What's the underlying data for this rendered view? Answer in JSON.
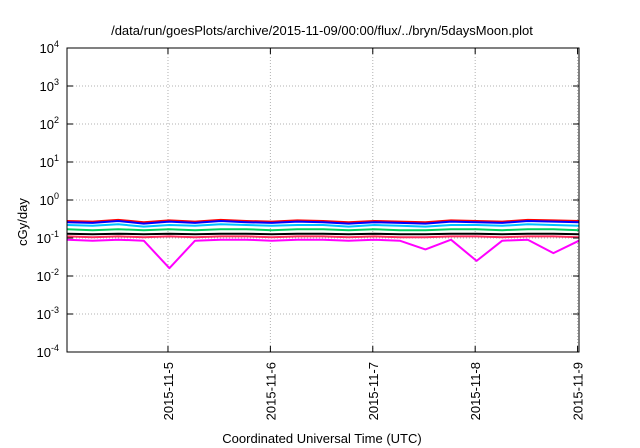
{
  "chart_data": {
    "type": "line",
    "title": "/data/run/goesPlots/archive/2015-11-09/00:00/flux/../bryn/5daysMoon.plot",
    "xlabel": "Coordinated Universal Time (UTC)",
    "ylabel": "cGy/day",
    "yscale": "log",
    "ylim": [
      0.0001,
      10000
    ],
    "xlim": [
      "2015-11-04T00:20",
      "2015-11-09T00:20"
    ],
    "grid": true,
    "x_ticks": [
      {
        "label": "2015-11-5",
        "date": "2015-11-05T00:00"
      },
      {
        "label": "2015-11-6",
        "date": "2015-11-06T00:00"
      },
      {
        "label": "2015-11-7",
        "date": "2015-11-07T00:00"
      },
      {
        "label": "2015-11-8",
        "date": "2015-11-08T00:00"
      },
      {
        "label": "2015-11-9",
        "date": "2015-11-09T00:00"
      }
    ],
    "y_ticks": [
      {
        "base": "10",
        "exp": "4",
        "value": 10000
      },
      {
        "base": "10",
        "exp": "3",
        "value": 1000
      },
      {
        "base": "10",
        "exp": "2",
        "value": 100
      },
      {
        "base": "10",
        "exp": "1",
        "value": 10
      },
      {
        "base": "10",
        "exp": "0",
        "value": 1
      },
      {
        "base": "10",
        "exp": "-1",
        "value": 0.1
      },
      {
        "base": "10",
        "exp": "-2",
        "value": 0.01
      },
      {
        "base": "10",
        "exp": "-3",
        "value": 0.001
      },
      {
        "base": "10",
        "exp": "-4",
        "value": 0.0001
      }
    ],
    "x": [
      "2015-11-04T00:20",
      "2015-11-04T06:20",
      "2015-11-04T12:20",
      "2015-11-04T18:20",
      "2015-11-05T00:20",
      "2015-11-05T06:20",
      "2015-11-05T12:20",
      "2015-11-05T18:20",
      "2015-11-06T00:20",
      "2015-11-06T06:20",
      "2015-11-06T12:20",
      "2015-11-06T18:20",
      "2015-11-07T00:20",
      "2015-11-07T06:20",
      "2015-11-07T12:20",
      "2015-11-07T18:20",
      "2015-11-08T00:20",
      "2015-11-08T06:20",
      "2015-11-08T12:20",
      "2015-11-08T18:20",
      "2015-11-09T00:20"
    ],
    "series": [
      {
        "color": "#ff0000",
        "values": [
          0.28,
          0.27,
          0.3,
          0.26,
          0.29,
          0.27,
          0.3,
          0.28,
          0.27,
          0.29,
          0.28,
          0.26,
          0.28,
          0.27,
          0.26,
          0.29,
          0.28,
          0.27,
          0.3,
          0.29,
          0.28
        ]
      },
      {
        "color": "#0000ff",
        "values": [
          0.26,
          0.25,
          0.28,
          0.24,
          0.27,
          0.25,
          0.28,
          0.26,
          0.25,
          0.27,
          0.26,
          0.24,
          0.26,
          0.25,
          0.24,
          0.27,
          0.26,
          0.25,
          0.28,
          0.27,
          0.26
        ]
      },
      {
        "color": "#00c0ff",
        "values": [
          0.22,
          0.21,
          0.23,
          0.2,
          0.22,
          0.21,
          0.23,
          0.22,
          0.21,
          0.22,
          0.22,
          0.2,
          0.22,
          0.21,
          0.2,
          0.22,
          0.22,
          0.21,
          0.23,
          0.22,
          0.21
        ]
      },
      {
        "color": "#00d060",
        "values": [
          0.17,
          0.16,
          0.17,
          0.16,
          0.17,
          0.16,
          0.17,
          0.17,
          0.16,
          0.17,
          0.17,
          0.16,
          0.17,
          0.16,
          0.16,
          0.17,
          0.17,
          0.16,
          0.17,
          0.17,
          0.16
        ]
      },
      {
        "color": "#000000",
        "values": [
          0.13,
          0.125,
          0.13,
          0.125,
          0.13,
          0.125,
          0.13,
          0.13,
          0.125,
          0.13,
          0.13,
          0.125,
          0.13,
          0.125,
          0.125,
          0.13,
          0.13,
          0.125,
          0.13,
          0.13,
          0.125
        ]
      },
      {
        "color": "#ff3060",
        "values": [
          0.11,
          0.105,
          0.11,
          0.105,
          0.11,
          0.105,
          0.11,
          0.11,
          0.105,
          0.11,
          0.11,
          0.105,
          0.11,
          0.105,
          0.105,
          0.11,
          0.11,
          0.105,
          0.11,
          0.11,
          0.105
        ]
      },
      {
        "color": "#ff00ff",
        "values": [
          0.09,
          0.085,
          0.09,
          0.085,
          0.016,
          0.085,
          0.09,
          0.09,
          0.085,
          0.09,
          0.09,
          0.085,
          0.09,
          0.085,
          0.05,
          0.09,
          0.025,
          0.085,
          0.09,
          0.04,
          0.085
        ]
      }
    ]
  }
}
